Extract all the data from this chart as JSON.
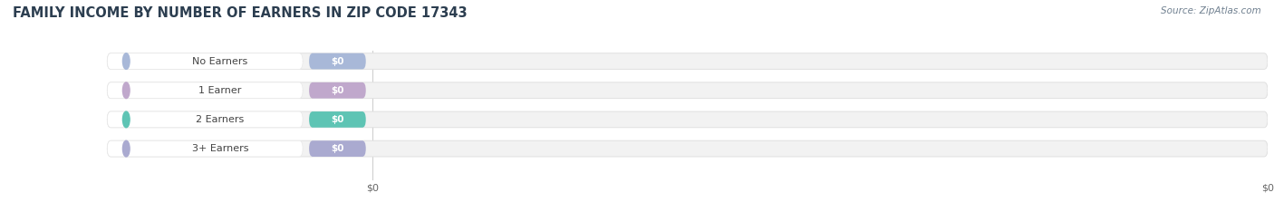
{
  "title": "FAMILY INCOME BY NUMBER OF EARNERS IN ZIP CODE 17343",
  "categories": [
    "No Earners",
    "1 Earner",
    "2 Earners",
    "3+ Earners"
  ],
  "values": [
    0,
    0,
    0,
    0
  ],
  "bar_colors": [
    "#a8b8d8",
    "#c0a8cc",
    "#5ec4b4",
    "#aaaad0"
  ],
  "circle_colors": [
    "#a8b8d8",
    "#c0a8cc",
    "#5ec4b4",
    "#aaaad0"
  ],
  "source_text": "Source: ZipAtlas.com",
  "background_color": "#ffffff",
  "bar_bg_color": "#f2f2f2",
  "bar_border_color": "#e0e0e0",
  "white_pill_color": "#ffffff",
  "title_fontsize": 10.5,
  "label_fontsize": 8,
  "value_fontsize": 7.5,
  "source_fontsize": 7.5,
  "tick_fontsize": 8
}
